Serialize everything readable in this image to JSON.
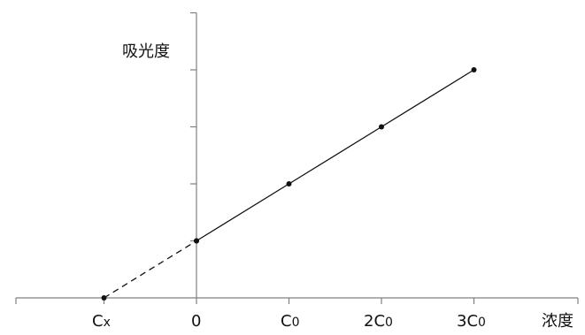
{
  "chart_data": {
    "type": "line",
    "title": "",
    "xlabel": "浓度",
    "ylabel": "吸光度",
    "x_ticks": [
      {
        "main": "C",
        "sub": "x",
        "value": -1
      },
      {
        "main": "0",
        "sub": "",
        "value": 0
      },
      {
        "main": "C",
        "sub": "0",
        "value": 1
      },
      {
        "main": "2C",
        "sub": "0",
        "value": 2
      },
      {
        "main": "3C",
        "sub": "0",
        "value": 3
      }
    ],
    "series": [
      {
        "x": [
          0,
          1,
          2,
          3
        ],
        "y": [
          1,
          2,
          3,
          4
        ],
        "style": "solid",
        "markers": true
      },
      {
        "x": [
          -1,
          0
        ],
        "y": [
          0,
          1
        ],
        "style": "dashed",
        "markers": true
      }
    ],
    "xlim": [
      -2,
      4
    ],
    "ylim": [
      0,
      5
    ],
    "grid": false,
    "colors": {
      "line": "#111111",
      "axis": "#808080"
    }
  }
}
